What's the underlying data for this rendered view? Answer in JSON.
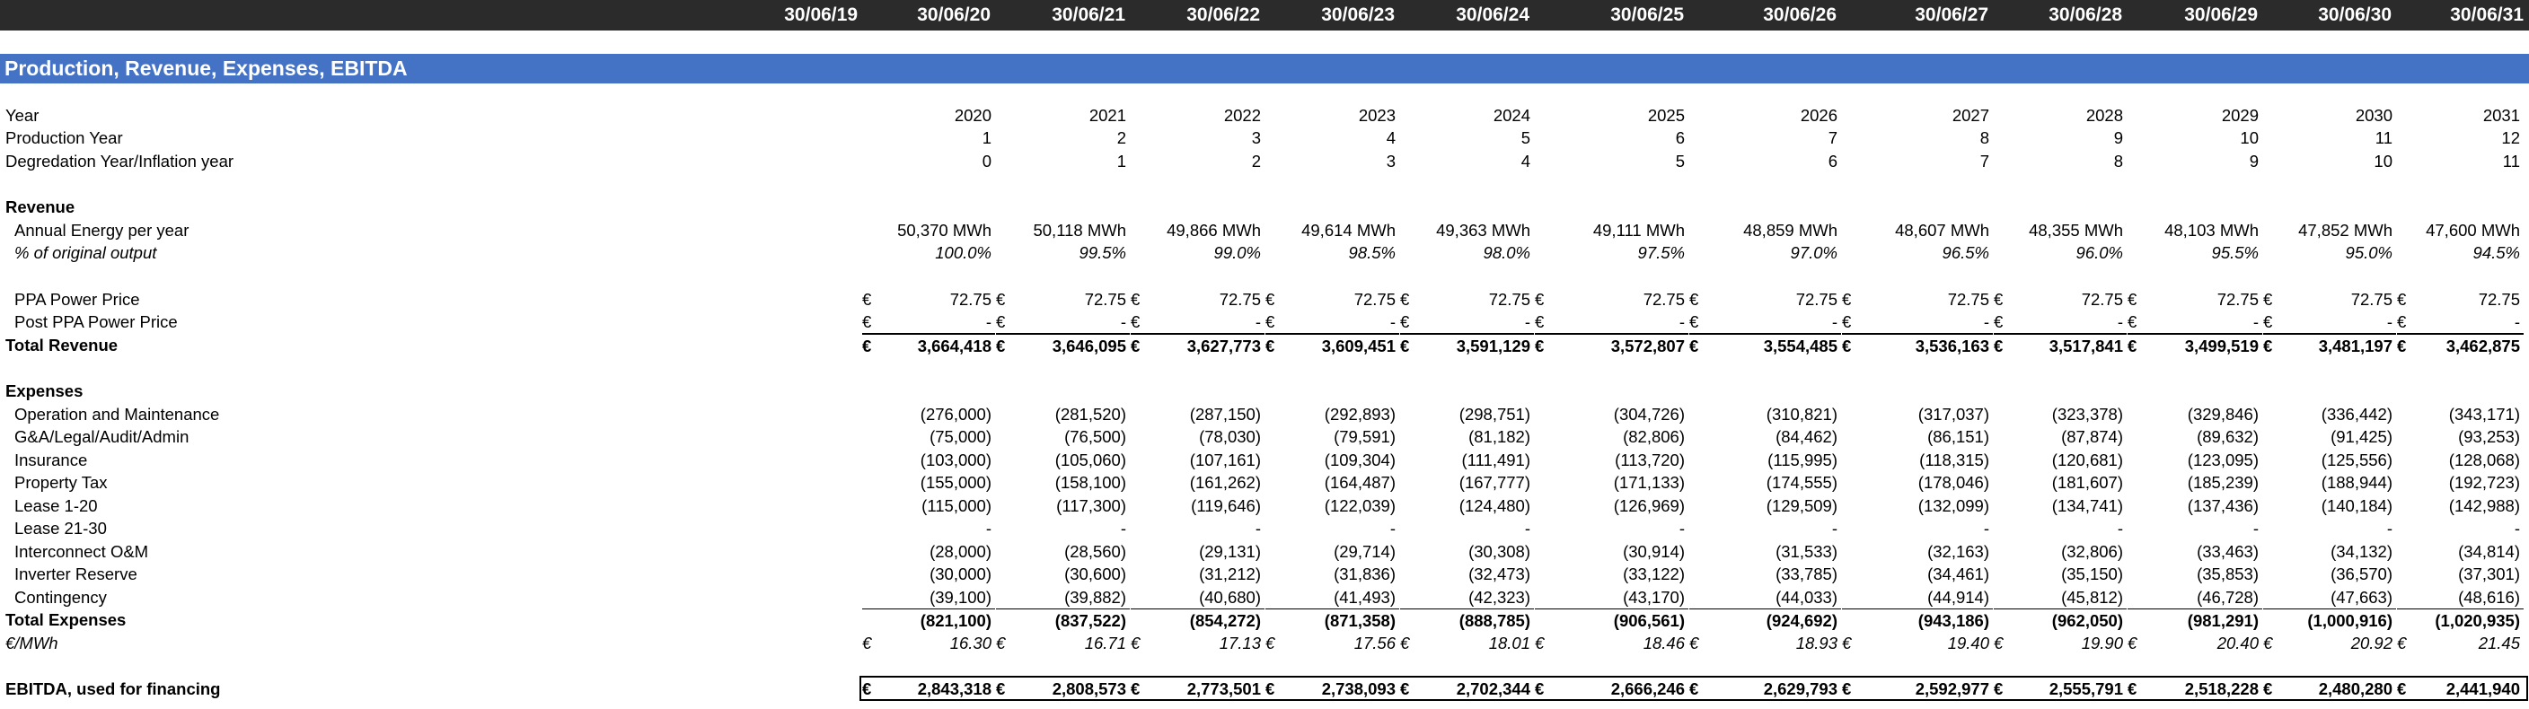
{
  "header_dates": [
    "30/06/19",
    "30/06/20",
    "30/06/21",
    "30/06/22",
    "30/06/23",
    "30/06/24",
    "30/06/25",
    "30/06/26",
    "30/06/27",
    "30/06/28",
    "30/06/29",
    "30/06/30",
    "30/06/31"
  ],
  "section_title": "Production, Revenue, Expenses, EBITDA",
  "currency_symbol": "€",
  "rows": [
    {
      "id": "year",
      "label": "Year",
      "values": [
        "2020",
        "2021",
        "2022",
        "2023",
        "2024",
        "2025",
        "2026",
        "2027",
        "2028",
        "2029",
        "2030",
        "2031"
      ]
    },
    {
      "id": "production-year",
      "label": "Production Year",
      "values": [
        "1",
        "2",
        "3",
        "4",
        "5",
        "6",
        "7",
        "8",
        "9",
        "10",
        "11",
        "12"
      ]
    },
    {
      "id": "degradation-year",
      "label": "Degredation Year/Inflation year",
      "values": [
        "0",
        "1",
        "2",
        "3",
        "4",
        "5",
        "6",
        "7",
        "8",
        "9",
        "10",
        "11"
      ]
    },
    {
      "id": "revenue-heading",
      "label": "Revenue",
      "values": []
    },
    {
      "id": "annual-energy",
      "label": "Annual Energy per year",
      "values": [
        "50,370 MWh",
        "50,118 MWh",
        "49,866 MWh",
        "49,614 MWh",
        "49,363 MWh",
        "49,111 MWh",
        "48,859 MWh",
        "48,607 MWh",
        "48,355 MWh",
        "48,103 MWh",
        "47,852 MWh",
        "47,600 MWh"
      ]
    },
    {
      "id": "pct-original",
      "label": "% of original output",
      "values": [
        "100.0%",
        "99.5%",
        "99.0%",
        "98.5%",
        "98.0%",
        "97.5%",
        "97.0%",
        "96.5%",
        "96.0%",
        "95.5%",
        "95.0%",
        "94.5%"
      ]
    },
    {
      "id": "ppa-price",
      "label": "PPA Power Price",
      "values": [
        "72.75",
        "72.75",
        "72.75",
        "72.75",
        "72.75",
        "72.75",
        "72.75",
        "72.75",
        "72.75",
        "72.75",
        "72.75",
        "72.75"
      ]
    },
    {
      "id": "post-ppa-price",
      "label": "Post PPA Power Price",
      "values": [
        "-",
        "-",
        "-",
        "-",
        "-",
        "-",
        "-",
        "-",
        "-",
        "-",
        "-",
        "-"
      ]
    },
    {
      "id": "total-revenue",
      "label": "Total Revenue",
      "values": [
        "3,664,418",
        "3,646,095",
        "3,627,773",
        "3,609,451",
        "3,591,129",
        "3,572,807",
        "3,554,485",
        "3,536,163",
        "3,517,841",
        "3,499,519",
        "3,481,197",
        "3,462,875"
      ]
    },
    {
      "id": "expenses-heading",
      "label": "Expenses",
      "values": []
    },
    {
      "id": "om",
      "label": "Operation and Maintenance",
      "values": [
        "(276,000)",
        "(281,520)",
        "(287,150)",
        "(292,893)",
        "(298,751)",
        "(304,726)",
        "(310,821)",
        "(317,037)",
        "(323,378)",
        "(329,846)",
        "(336,442)",
        "(343,171)"
      ]
    },
    {
      "id": "ga",
      "label": "G&A/Legal/Audit/Admin",
      "values": [
        "(75,000)",
        "(76,500)",
        "(78,030)",
        "(79,591)",
        "(81,182)",
        "(82,806)",
        "(84,462)",
        "(86,151)",
        "(87,874)",
        "(89,632)",
        "(91,425)",
        "(93,253)"
      ]
    },
    {
      "id": "insurance",
      "label": "Insurance",
      "values": [
        "(103,000)",
        "(105,060)",
        "(107,161)",
        "(109,304)",
        "(111,491)",
        "(113,720)",
        "(115,995)",
        "(118,315)",
        "(120,681)",
        "(123,095)",
        "(125,556)",
        "(128,068)"
      ]
    },
    {
      "id": "property-tax",
      "label": "Property Tax",
      "values": [
        "(155,000)",
        "(158,100)",
        "(161,262)",
        "(164,487)",
        "(167,777)",
        "(171,133)",
        "(174,555)",
        "(178,046)",
        "(181,607)",
        "(185,239)",
        "(188,944)",
        "(192,723)"
      ]
    },
    {
      "id": "lease-1-20",
      "label": "Lease 1-20",
      "values": [
        "(115,000)",
        "(117,300)",
        "(119,646)",
        "(122,039)",
        "(124,480)",
        "(126,969)",
        "(129,509)",
        "(132,099)",
        "(134,741)",
        "(137,436)",
        "(140,184)",
        "(142,988)"
      ]
    },
    {
      "id": "lease-21-30",
      "label": "Lease 21-30",
      "values": [
        "-",
        "-",
        "-",
        "-",
        "-",
        "-",
        "-",
        "-",
        "-",
        "-",
        "-",
        "-"
      ]
    },
    {
      "id": "interconnect",
      "label": "Interconnect O&M",
      "values": [
        "(28,000)",
        "(28,560)",
        "(29,131)",
        "(29,714)",
        "(30,308)",
        "(30,914)",
        "(31,533)",
        "(32,163)",
        "(32,806)",
        "(33,463)",
        "(34,132)",
        "(34,814)"
      ]
    },
    {
      "id": "inverter",
      "label": "Inverter Reserve",
      "values": [
        "(30,000)",
        "(30,600)",
        "(31,212)",
        "(31,836)",
        "(32,473)",
        "(33,122)",
        "(33,785)",
        "(34,461)",
        "(35,150)",
        "(35,853)",
        "(36,570)",
        "(37,301)"
      ]
    },
    {
      "id": "contingency",
      "label": "Contingency",
      "values": [
        "(39,100)",
        "(39,882)",
        "(40,680)",
        "(41,493)",
        "(42,323)",
        "(43,170)",
        "(44,033)",
        "(44,914)",
        "(45,812)",
        "(46,728)",
        "(47,663)",
        "(48,616)"
      ]
    },
    {
      "id": "total-expenses",
      "label": "Total Expenses",
      "values": [
        "(821,100)",
        "(837,522)",
        "(854,272)",
        "(871,358)",
        "(888,785)",
        "(906,561)",
        "(924,692)",
        "(943,186)",
        "(962,050)",
        "(981,291)",
        "(1,000,916)",
        "(1,020,935)"
      ]
    },
    {
      "id": "eur-per-mwh",
      "label": "€/MWh",
      "values": [
        "16.30",
        "16.71",
        "17.13",
        "17.56",
        "18.01",
        "18.46",
        "18.93",
        "19.40",
        "19.90",
        "20.40",
        "20.92",
        "21.45"
      ]
    },
    {
      "id": "ebitda",
      "label": "EBITDA, used for financing",
      "values": [
        "2,843,318",
        "2,808,573",
        "2,773,501",
        "2,738,093",
        "2,702,344",
        "2,666,246",
        "2,629,793",
        "2,592,977",
        "2,555,791",
        "2,518,228",
        "2,480,280",
        "2,441,940"
      ]
    }
  ]
}
